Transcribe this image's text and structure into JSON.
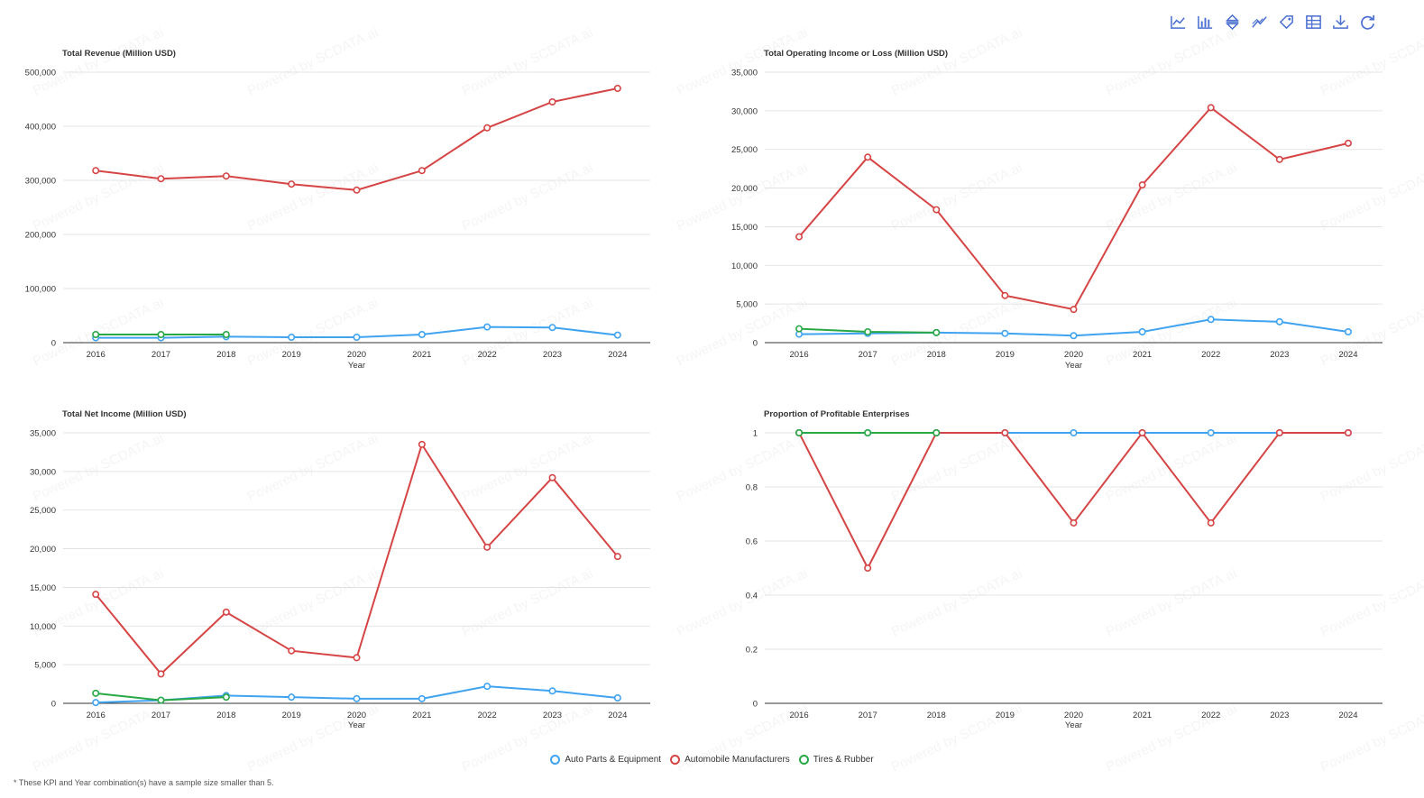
{
  "watermark": "Powered by SCDATA.ai",
  "toolbar": {
    "tools": [
      {
        "name": "line-chart-icon"
      },
      {
        "name": "bar-chart-icon"
      },
      {
        "name": "sort-icon"
      },
      {
        "name": "trend-icon"
      },
      {
        "name": "tag-icon"
      },
      {
        "name": "table-icon"
      },
      {
        "name": "download-icon"
      },
      {
        "name": "refresh-icon"
      }
    ],
    "color": "#4a6fd1"
  },
  "legend": [
    {
      "label": "Auto Parts & Equipment",
      "color": "#3fa3f0"
    },
    {
      "label": "Automobile Manufacturers",
      "color": "#d64545"
    },
    {
      "label": "Tires & Rubber",
      "color": "#27a844"
    }
  ],
  "footnote": "* These KPI and Year combination(s) have a sample size smaller than 5.",
  "chart_data": [
    {
      "type": "line",
      "title": "Total Revenue (Million USD)",
      "xlabel": "Year",
      "categories": [
        "2016",
        "2017",
        "2018",
        "2019",
        "2020",
        "2021",
        "2022",
        "2023",
        "2024"
      ],
      "yticks": [
        0,
        100000,
        200000,
        300000,
        400000,
        500000
      ],
      "ytick_labels": [
        "0",
        "100,000",
        "200,000",
        "300,000",
        "400,000",
        "500,000"
      ],
      "ylim": [
        0,
        500000
      ],
      "series": [
        {
          "name": "Auto Parts & Equipment",
          "color": "#3fa3f0",
          "values": [
            9000,
            9000,
            11000,
            10000,
            10000,
            15000,
            29000,
            28000,
            14000
          ]
        },
        {
          "name": "Automobile Manufacturers",
          "color": "#d64545",
          "values": [
            318000,
            303000,
            308000,
            293000,
            282000,
            318000,
            397000,
            445000,
            470000
          ]
        },
        {
          "name": "Tires & Rubber",
          "color": "#27a844",
          "values": [
            15000,
            15000,
            15000,
            null,
            null,
            null,
            null,
            null,
            null
          ]
        }
      ]
    },
    {
      "type": "line",
      "title": "Total Operating Income or Loss (Million USD)",
      "xlabel": "Year",
      "categories": [
        "2016",
        "2017",
        "2018",
        "2019",
        "2020",
        "2021",
        "2022",
        "2023",
        "2024"
      ],
      "yticks": [
        0,
        5000,
        10000,
        15000,
        20000,
        25000,
        30000,
        35000
      ],
      "ytick_labels": [
        "0",
        "5,000",
        "10,000",
        "15,000",
        "20,000",
        "25,000",
        "30,000",
        "35,000"
      ],
      "ylim": [
        0,
        35000
      ],
      "series": [
        {
          "name": "Auto Parts & Equipment",
          "color": "#3fa3f0",
          "values": [
            1100,
            1200,
            1300,
            1200,
            900,
            1400,
            3000,
            2700,
            1400
          ]
        },
        {
          "name": "Automobile Manufacturers",
          "color": "#d64545",
          "values": [
            13700,
            24000,
            17200,
            6100,
            4300,
            20400,
            30400,
            23700,
            25800
          ]
        },
        {
          "name": "Tires & Rubber",
          "color": "#27a844",
          "values": [
            1800,
            1400,
            1300,
            null,
            null,
            null,
            null,
            null,
            null
          ]
        }
      ]
    },
    {
      "type": "line",
      "title": "Total Net Income (Million USD)",
      "xlabel": "Year",
      "categories": [
        "2016",
        "2017",
        "2018",
        "2019",
        "2020",
        "2021",
        "2022",
        "2023",
        "2024"
      ],
      "yticks": [
        0,
        5000,
        10000,
        15000,
        20000,
        25000,
        30000,
        35000
      ],
      "ytick_labels": [
        "0",
        "5,000",
        "10,000",
        "15,000",
        "20,000",
        "25,000",
        "30,000",
        "35,000"
      ],
      "ylim": [
        0,
        35000
      ],
      "series": [
        {
          "name": "Auto Parts & Equipment",
          "color": "#3fa3f0",
          "values": [
            100,
            400,
            1000,
            800,
            600,
            600,
            2200,
            1600,
            700
          ]
        },
        {
          "name": "Automobile Manufacturers",
          "color": "#d64545",
          "values": [
            14100,
            3800,
            11800,
            6800,
            5900,
            33500,
            20200,
            29200,
            19000
          ]
        },
        {
          "name": "Tires & Rubber",
          "color": "#27a844",
          "values": [
            1300,
            400,
            800,
            null,
            null,
            null,
            null,
            null,
            null
          ]
        }
      ]
    },
    {
      "type": "line",
      "title": "Proportion of Profitable Enterprises",
      "xlabel": "Year",
      "categories": [
        "2016",
        "2017",
        "2018",
        "2019",
        "2020",
        "2021",
        "2022",
        "2023",
        "2024"
      ],
      "yticks": [
        0,
        0.2,
        0.4,
        0.6,
        0.8,
        1
      ],
      "ytick_labels": [
        "0",
        "0.2",
        "0.4",
        "0.6",
        "0.8",
        "1"
      ],
      "ylim": [
        0,
        1
      ],
      "series": [
        {
          "name": "Auto Parts & Equipment",
          "color": "#3fa3f0",
          "values": [
            1,
            1,
            1,
            1,
            1,
            1,
            1,
            1,
            1
          ]
        },
        {
          "name": "Automobile Manufacturers",
          "color": "#d64545",
          "values": [
            1,
            0.5,
            1,
            1,
            0.667,
            1,
            0.667,
            1,
            1
          ]
        },
        {
          "name": "Tires & Rubber",
          "color": "#27a844",
          "values": [
            1,
            1,
            1,
            null,
            null,
            null,
            null,
            null,
            null
          ]
        }
      ]
    }
  ]
}
